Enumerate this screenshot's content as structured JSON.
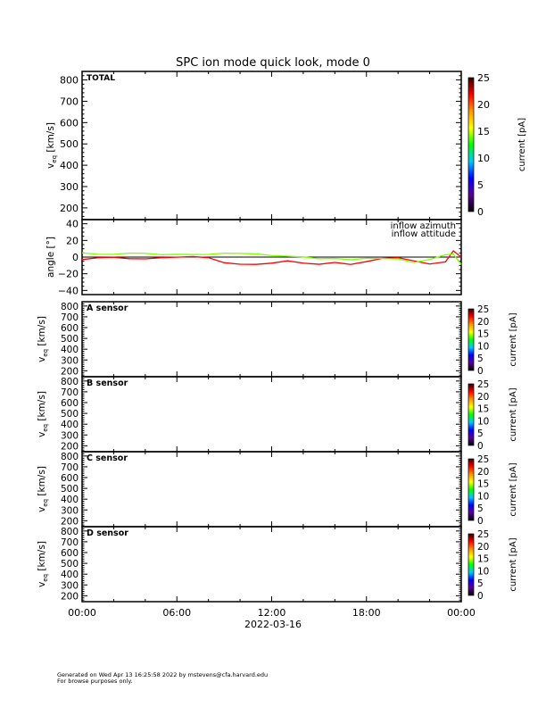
{
  "chart_data": {
    "title": "SPC ion mode quick look, mode 0",
    "x_ticks": [
      "00:00",
      "06:00",
      "12:00",
      "18:00",
      "00:00"
    ],
    "x_date_label": "2022-03-16",
    "xlim_hours": [
      0,
      24
    ],
    "panels": [
      {
        "type": "heatmap",
        "label": "TOTAL",
        "ylabel": "v_eq [km/s]",
        "ylabel_main": "v",
        "ylabel_sub": "eq",
        "ylabel_unit": "[km/s]",
        "ylim": [
          145,
          840
        ],
        "yticks": [
          200,
          300,
          400,
          500,
          600,
          700,
          800
        ],
        "colorbar": {
          "label": "current [pA]",
          "range": [
            0,
            25
          ],
          "ticks": [
            0,
            5,
            10,
            15,
            20,
            25
          ]
        },
        "data": "empty"
      },
      {
        "type": "line",
        "ylabel": "angle [°]",
        "ylim": [
          -45,
          45
        ],
        "yticks": [
          -40,
          -20,
          0,
          20,
          40
        ],
        "zero_line": true,
        "hours": [
          0,
          1,
          2,
          3,
          4,
          5,
          6,
          7,
          8,
          9,
          10,
          11,
          12,
          13,
          14,
          15,
          16,
          17,
          18,
          19,
          20,
          21,
          22,
          23,
          23.5,
          24
        ],
        "series": [
          {
            "name": "inflow azimuth",
            "color": "#ff0000",
            "values": [
              -3,
              -1.5,
              -1,
              -2,
              -1.5,
              0,
              0,
              0,
              -1.5,
              -7,
              -8,
              -8,
              -7,
              -5,
              -8,
              -9,
              -6,
              -8,
              -5,
              -2,
              -1.5,
              -5,
              -8,
              -5,
              8,
              0
            ]
          },
          {
            "name": "inflow attitude",
            "color": "#80ff00",
            "values": [
              5,
              4,
              4,
              5,
              4,
              2,
              3,
              3.5,
              4,
              5,
              4,
              3,
              1.5,
              1.5,
              1,
              -1.5,
              -2,
              -4,
              -2,
              -1.5,
              -1.5,
              -6,
              -3,
              2,
              3,
              -9
            ]
          }
        ]
      },
      {
        "type": "heatmap",
        "label": "A sensor",
        "ylabel_main": "v",
        "ylabel_sub": "eq",
        "ylabel_unit": "[km/s]",
        "ylim": [
          145,
          840
        ],
        "yticks": [
          200,
          300,
          400,
          500,
          600,
          700,
          800
        ],
        "colorbar": {
          "label": "current [pA]",
          "range": [
            0,
            25
          ],
          "ticks": [
            0,
            5,
            10,
            15,
            20,
            25
          ]
        },
        "data": "empty"
      },
      {
        "type": "heatmap",
        "label": "B sensor",
        "ylabel_main": "v",
        "ylabel_sub": "eq",
        "ylabel_unit": "[km/s]",
        "ylim": [
          145,
          840
        ],
        "yticks": [
          200,
          300,
          400,
          500,
          600,
          700,
          800
        ],
        "colorbar": {
          "label": "current [pA]",
          "range": [
            0,
            25
          ],
          "ticks": [
            0,
            5,
            10,
            15,
            20,
            25
          ]
        },
        "data": "empty"
      },
      {
        "type": "heatmap",
        "label": "C sensor",
        "ylabel_main": "v",
        "ylabel_sub": "eq",
        "ylabel_unit": "[km/s]",
        "ylim": [
          145,
          840
        ],
        "yticks": [
          200,
          300,
          400,
          500,
          600,
          700,
          800
        ],
        "colorbar": {
          "label": "current [pA]",
          "range": [
            0,
            25
          ],
          "ticks": [
            0,
            5,
            10,
            15,
            20,
            25
          ]
        },
        "data": "empty"
      },
      {
        "type": "heatmap",
        "label": "D sensor",
        "ylabel_main": "v",
        "ylabel_sub": "eq",
        "ylabel_unit": "[km/s]",
        "ylim": [
          145,
          840
        ],
        "yticks": [
          200,
          300,
          400,
          500,
          600,
          700,
          800
        ],
        "colorbar": {
          "label": "current [pA]",
          "range": [
            0,
            25
          ],
          "ticks": [
            0,
            5,
            10,
            15,
            20,
            25
          ]
        },
        "data": "empty"
      }
    ],
    "colormap": [
      "#000000",
      "#5a0096",
      "#0000ff",
      "#00c8ff",
      "#00ff00",
      "#ffff00",
      "#ff9600",
      "#ff0000",
      "#300000"
    ]
  },
  "footer": {
    "line1": "Generated on Wed Apr 13 16:25:58 2022 by mstevens@cfa.harvard.edu",
    "line2": "For browse purposes only."
  }
}
